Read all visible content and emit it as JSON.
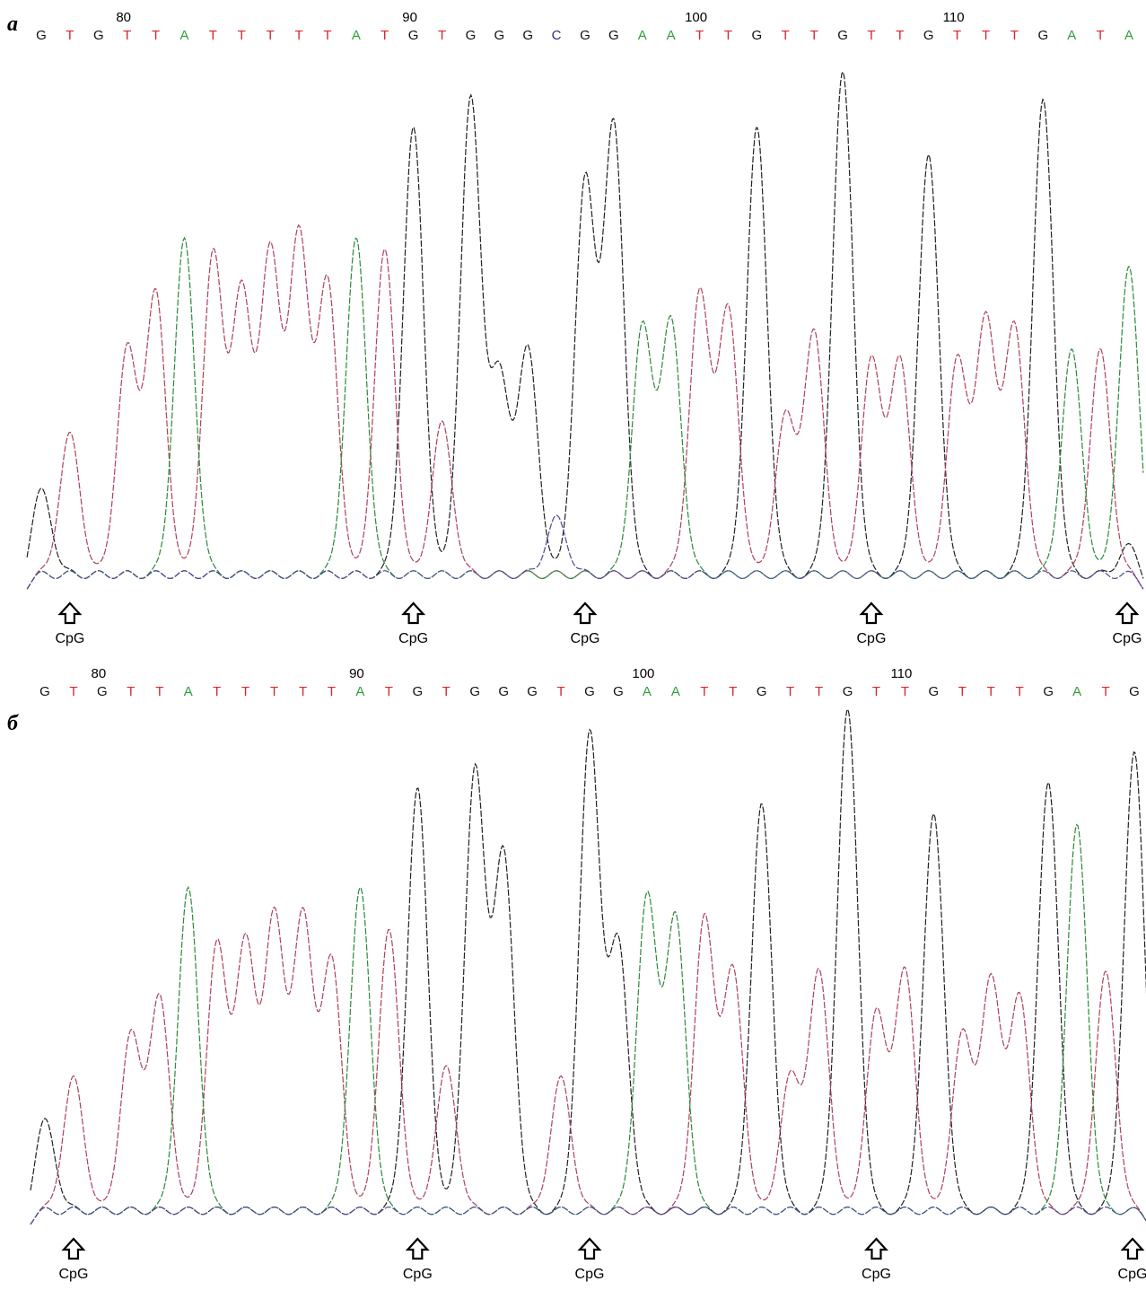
{
  "chart_data": [
    {
      "panel": "a",
      "type": "line",
      "sequence": [
        "G",
        "T",
        "G",
        "T",
        "T",
        "A",
        "T",
        "T",
        "T",
        "T",
        "T",
        "A",
        "T",
        "G",
        "T",
        "G",
        "G",
        "G",
        "C",
        "G",
        "G",
        "A",
        "A",
        "T",
        "T",
        "G",
        "T",
        "T",
        "G",
        "T",
        "T",
        "G",
        "T",
        "T",
        "T",
        "G",
        "A",
        "T",
        "A"
      ],
      "position_markers": [
        {
          "label": "80",
          "base_index": 3
        },
        {
          "label": "90",
          "base_index": 13
        },
        {
          "label": "100",
          "base_index": 23
        },
        {
          "label": "110",
          "base_index": 32
        }
      ],
      "cpg_sites": [
        {
          "label": "CpG",
          "base_index": 1
        },
        {
          "label": "CpG",
          "base_index": 13
        },
        {
          "label": "CpG",
          "base_index": 19
        },
        {
          "label": "CpG",
          "base_index": 29
        },
        {
          "label": "CpG",
          "base_index": 39
        }
      ],
      "series": [
        {
          "base": "G",
          "values": [
            0.2,
            0.05,
            0.05,
            0.05,
            0.05,
            0.05,
            0.05,
            0.05,
            0.05,
            0.05,
            0.05,
            0.05,
            0.05,
            0.85,
            0.05,
            0.9,
            0.4,
            0.45,
            0.05,
            0.75,
            0.85,
            0.05,
            0.05,
            0.05,
            0.05,
            0.85,
            0.05,
            0.05,
            0.95,
            0.05,
            0.05,
            0.8,
            0.05,
            0.05,
            0.05,
            0.9,
            0.05,
            0.05,
            0.1
          ]
        },
        {
          "base": "T",
          "values": [
            0.05,
            0.3,
            0.05,
            0.45,
            0.55,
            0.05,
            0.62,
            0.55,
            0.62,
            0.65,
            0.57,
            0.05,
            0.63,
            0.05,
            0.32,
            0.05,
            0.05,
            0.05,
            0.05,
            0.05,
            0.05,
            0.05,
            0.05,
            0.55,
            0.52,
            0.05,
            0.33,
            0.48,
            0.05,
            0.43,
            0.43,
            0.05,
            0.43,
            0.5,
            0.49,
            0.05,
            0.05,
            0.45,
            0.05
          ]
        },
        {
          "base": "A",
          "values": [
            0.05,
            0.05,
            0.05,
            0.05,
            0.05,
            0.65,
            0.05,
            0.05,
            0.05,
            0.05,
            0.05,
            0.65,
            0.05,
            0.05,
            0.05,
            0.05,
            0.05,
            0.05,
            0.05,
            0.05,
            0.05,
            0.49,
            0.5,
            0.05,
            0.05,
            0.05,
            0.05,
            0.05,
            0.05,
            0.05,
            0.05,
            0.05,
            0.05,
            0.05,
            0.05,
            0.05,
            0.45,
            0.05,
            0.6
          ]
        },
        {
          "base": "C",
          "values": [
            0.05,
            0.05,
            0.05,
            0.05,
            0.05,
            0.05,
            0.05,
            0.05,
            0.05,
            0.05,
            0.05,
            0.05,
            0.05,
            0.05,
            0.05,
            0.05,
            0.05,
            0.05,
            0.15,
            0.05,
            0.05,
            0.05,
            0.05,
            0.05,
            0.05,
            0.05,
            0.05,
            0.05,
            0.05,
            0.05,
            0.05,
            0.05,
            0.05,
            0.05,
            0.05,
            0.05,
            0.05,
            0.05,
            0.05
          ]
        }
      ],
      "ylim": [
        0,
        1
      ]
    },
    {
      "panel": "б",
      "type": "line",
      "sequence": [
        "G",
        "T",
        "G",
        "T",
        "T",
        "A",
        "T",
        "T",
        "T",
        "T",
        "T",
        "A",
        "T",
        "G",
        "T",
        "G",
        "G",
        "G",
        "T",
        "G",
        "G",
        "A",
        "A",
        "T",
        "T",
        "G",
        "T",
        "T",
        "G",
        "T",
        "T",
        "G",
        "T",
        "T",
        "T",
        "G",
        "A",
        "T",
        "G"
      ],
      "position_markers": [
        {
          "label": "80",
          "base_index": 2
        },
        {
          "label": "90",
          "base_index": 11
        },
        {
          "label": "100",
          "base_index": 21
        },
        {
          "label": "110",
          "base_index": 30
        }
      ],
      "cpg_sites": [
        {
          "label": "CpG",
          "base_index": 1
        },
        {
          "label": "CpG",
          "base_index": 13
        },
        {
          "label": "CpG",
          "base_index": 19
        },
        {
          "label": "CpG",
          "base_index": 29
        },
        {
          "label": "CpG",
          "base_index": 39
        }
      ],
      "series": [
        {
          "base": "G",
          "values": [
            0.22,
            0.05,
            0.05,
            0.05,
            0.05,
            0.05,
            0.05,
            0.05,
            0.05,
            0.05,
            0.05,
            0.05,
            0.05,
            0.85,
            0.05,
            0.88,
            0.72,
            0.05,
            0.05,
            0.95,
            0.55,
            0.05,
            0.05,
            0.05,
            0.05,
            0.82,
            0.05,
            0.05,
            1.0,
            0.05,
            0.05,
            0.8,
            0.05,
            0.05,
            0.05,
            0.86,
            0.05,
            0.05,
            0.92
          ]
        },
        {
          "base": "T",
          "values": [
            0.05,
            0.3,
            0.05,
            0.38,
            0.45,
            0.05,
            0.55,
            0.55,
            0.6,
            0.6,
            0.52,
            0.05,
            0.58,
            0.05,
            0.32,
            0.05,
            0.05,
            0.05,
            0.3,
            0.05,
            0.05,
            0.05,
            0.05,
            0.6,
            0.5,
            0.05,
            0.3,
            0.5,
            0.05,
            0.42,
            0.5,
            0.05,
            0.38,
            0.48,
            0.45,
            0.05,
            0.05,
            0.5,
            0.05
          ]
        },
        {
          "base": "A",
          "values": [
            0.05,
            0.05,
            0.05,
            0.05,
            0.05,
            0.66,
            0.05,
            0.05,
            0.05,
            0.05,
            0.05,
            0.66,
            0.05,
            0.05,
            0.05,
            0.05,
            0.05,
            0.05,
            0.05,
            0.05,
            0.05,
            0.64,
            0.6,
            0.05,
            0.05,
            0.05,
            0.05,
            0.05,
            0.05,
            0.05,
            0.05,
            0.05,
            0.05,
            0.05,
            0.05,
            0.05,
            0.78,
            0.05,
            0.05
          ]
        },
        {
          "base": "C",
          "values": [
            0.05,
            0.05,
            0.05,
            0.05,
            0.05,
            0.05,
            0.05,
            0.05,
            0.05,
            0.05,
            0.05,
            0.05,
            0.05,
            0.05,
            0.05,
            0.05,
            0.05,
            0.05,
            0.05,
            0.05,
            0.05,
            0.05,
            0.05,
            0.05,
            0.05,
            0.05,
            0.05,
            0.05,
            0.05,
            0.05,
            0.05,
            0.05,
            0.05,
            0.05,
            0.05,
            0.05,
            0.05,
            0.05,
            0.05
          ]
        }
      ],
      "ylim": [
        0,
        1
      ]
    }
  ],
  "panels": {
    "a": {
      "label": "a"
    },
    "b": {
      "label": "б"
    }
  },
  "colors": {
    "A": "#2e9e3a",
    "T": "#d9262c",
    "G": "#111111",
    "C": "#2b2b8a",
    "trace_A": "#2a8a3a",
    "trace_T": "#b0405a",
    "trace_G": "#222222",
    "trace_C": "#4a4a9a"
  },
  "icons": {
    "cpg_marker": "hollow-up-arrow-icon"
  }
}
